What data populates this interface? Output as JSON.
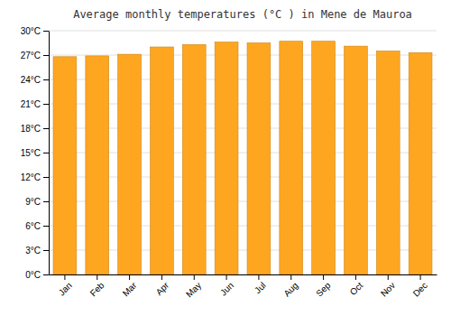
{
  "chart_data": {
    "type": "bar",
    "title": "Average monthly temperatures (°C ) in Mene de Mauroa",
    "categories": [
      "Jan",
      "Feb",
      "Mar",
      "Apr",
      "May",
      "Jun",
      "Jul",
      "Aug",
      "Sep",
      "Oct",
      "Nov",
      "Dec"
    ],
    "values": [
      26.8,
      26.9,
      27.1,
      28.0,
      28.3,
      28.6,
      28.5,
      28.7,
      28.7,
      28.1,
      27.5,
      27.3
    ],
    "color": "#FFA620",
    "ylim": [
      0,
      30
    ],
    "yticks": [
      {
        "value": 0,
        "label": "0°C"
      },
      {
        "value": 3,
        "label": "3°C"
      },
      {
        "value": 6,
        "label": "6°C"
      },
      {
        "value": 9,
        "label": "9°C"
      },
      {
        "value": 12,
        "label": "12°C"
      },
      {
        "value": 15,
        "label": "15°C"
      },
      {
        "value": 18,
        "label": "18°C"
      },
      {
        "value": 21,
        "label": "21°C"
      },
      {
        "value": 24,
        "label": "24°C"
      },
      {
        "value": 27,
        "label": "27°C"
      },
      {
        "value": 30,
        "label": "30°C"
      }
    ],
    "grid": true
  }
}
